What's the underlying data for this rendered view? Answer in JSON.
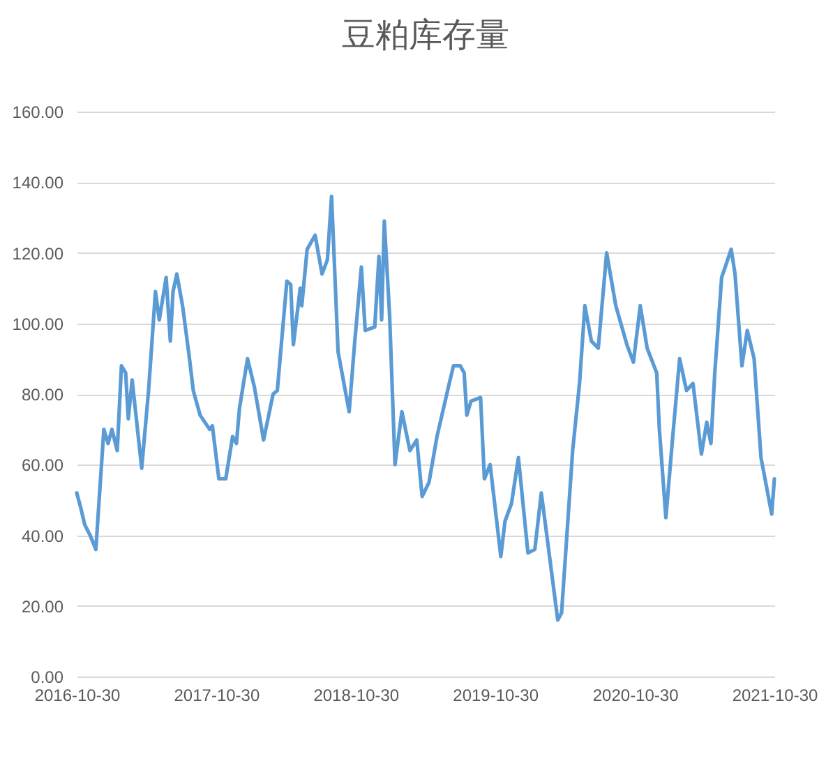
{
  "chart_data": {
    "type": "line",
    "title": "豆粕库存量",
    "x": [
      "2016-10-30",
      "2016-11-09",
      "2016-11-20",
      "2016-12-04",
      "2016-12-19",
      "2017-01-09",
      "2017-01-20",
      "2017-01-30",
      "2017-02-13",
      "2017-02-24",
      "2017-03-07",
      "2017-03-14",
      "2017-03-24",
      "2017-04-18",
      "2017-05-06",
      "2017-05-24",
      "2017-06-03",
      "2017-06-21",
      "2017-07-02",
      "2017-07-09",
      "2017-07-19",
      "2017-08-03",
      "2017-08-20",
      "2017-08-31",
      "2017-09-18",
      "2017-10-13",
      "2017-10-20",
      "2017-11-06",
      "2017-11-24",
      "2017-12-12",
      "2017-12-22",
      "2017-12-30",
      "2018-01-20",
      "2018-02-07",
      "2018-03-03",
      "2018-03-28",
      "2018-04-08",
      "2018-05-03",
      "2018-05-13",
      "2018-05-20",
      "2018-06-07",
      "2018-06-11",
      "2018-06-25",
      "2018-07-16",
      "2018-08-03",
      "2018-08-17",
      "2018-08-28",
      "2018-09-04",
      "2018-09-14",
      "2018-10-13",
      "2018-10-27",
      "2018-11-14",
      "2018-11-24",
      "2018-12-19",
      "2018-12-30",
      "2019-01-06",
      "2019-01-13",
      "2019-01-27",
      "2019-02-10",
      "2019-02-28",
      "2019-03-21",
      "2019-04-08",
      "2019-04-22",
      "2019-05-10",
      "2019-05-31",
      "2019-07-02",
      "2019-07-13",
      "2019-07-31",
      "2019-08-10",
      "2019-08-17",
      "2019-08-28",
      "2019-09-22",
      "2019-10-02",
      "2019-10-17",
      "2019-11-14",
      "2019-11-25",
      "2019-12-12",
      "2019-12-30",
      "2020-01-24",
      "2020-02-11",
      "2020-02-28",
      "2020-04-11",
      "2020-04-21",
      "2020-05-20",
      "2020-06-07",
      "2020-06-21",
      "2020-07-08",
      "2020-07-26",
      "2020-08-17",
      "2020-09-10",
      "2020-10-09",
      "2020-10-26",
      "2020-11-13",
      "2020-12-01",
      "2020-12-26",
      "2021-01-02",
      "2021-01-19",
      "2021-02-06",
      "2021-02-24",
      "2021-03-14",
      "2021-03-31",
      "2021-04-22",
      "2021-05-06",
      "2021-05-17",
      "2021-05-27",
      "2021-06-14",
      "2021-07-09",
      "2021-07-19",
      "2021-08-06",
      "2021-08-20",
      "2021-09-07",
      "2021-09-25",
      "2021-10-23",
      "2021-10-30"
    ],
    "series": [
      {
        "color": "#5b9bd5",
        "values": [
          52,
          48,
          43,
          40,
          36,
          70,
          66,
          70,
          64,
          88,
          86,
          73,
          84,
          59,
          81,
          109,
          101,
          113,
          95,
          109,
          114,
          105,
          91,
          81,
          74,
          70,
          71,
          56,
          56,
          68,
          66,
          76,
          90,
          82,
          67,
          80,
          81,
          112,
          111,
          94,
          110,
          105,
          121,
          125,
          114,
          118,
          136,
          118,
          92,
          75,
          94,
          116,
          98,
          99,
          119,
          101,
          129,
          102,
          60,
          75,
          64,
          67,
          51,
          55,
          68,
          83,
          88,
          88,
          86,
          74,
          78,
          79,
          56,
          60,
          34,
          44,
          49,
          62,
          35,
          36,
          52,
          16,
          18,
          64,
          83,
          105,
          95,
          93,
          120,
          105,
          94,
          89,
          105,
          93,
          86,
          70,
          45,
          68,
          90,
          81,
          83,
          63,
          72,
          66,
          86,
          113,
          121,
          114,
          88,
          98,
          90,
          62,
          46,
          56
        ]
      }
    ],
    "xlim": [
      "2016-10-30",
      "2021-10-30"
    ],
    "xticks": [
      {
        "value": "2016-10-30",
        "label": "2016-10-30"
      },
      {
        "value": "2017-10-30",
        "label": "2017-10-30"
      },
      {
        "value": "2018-10-30",
        "label": "2018-10-30"
      },
      {
        "value": "2019-10-30",
        "label": "2019-10-30"
      },
      {
        "value": "2020-10-30",
        "label": "2020-10-30"
      },
      {
        "value": "2021-10-30",
        "label": "2021-10-30"
      }
    ],
    "ylim": [
      0,
      160
    ],
    "yticks": [
      {
        "value": 0,
        "label": "0.00"
      },
      {
        "value": 20,
        "label": "20.00"
      },
      {
        "value": 40,
        "label": "40.00"
      },
      {
        "value": 60,
        "label": "60.00"
      },
      {
        "value": 80,
        "label": "80.00"
      },
      {
        "value": 100,
        "label": "100.00"
      },
      {
        "value": 120,
        "label": "120.00"
      },
      {
        "value": 140,
        "label": "140.00"
      },
      {
        "value": 160,
        "label": "160.00"
      }
    ],
    "grid": "y",
    "marker": "none",
    "line_style": "solid"
  }
}
